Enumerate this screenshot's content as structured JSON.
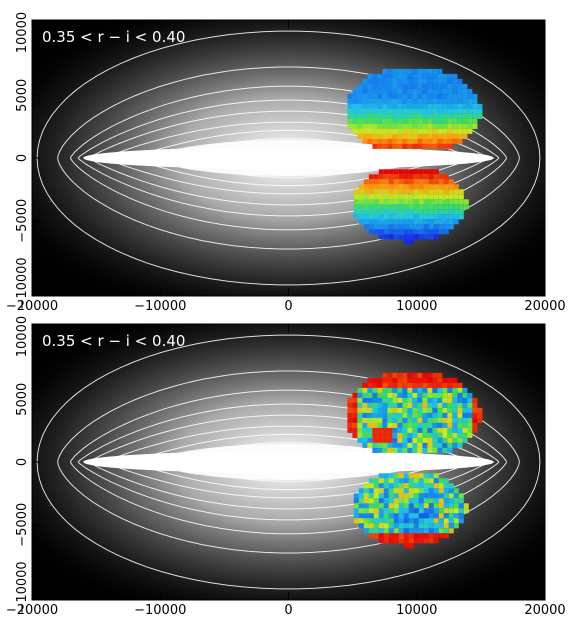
{
  "chart_data": [
    {
      "type": "heatmap",
      "panel_label": "0.35 < r − i < 0.40",
      "xlim": [
        -20000,
        20000
      ],
      "ylim": [
        -11000,
        11000
      ],
      "x_ticks": [
        -20000,
        -10000,
        0,
        10000,
        20000
      ],
      "y_ticks": [
        -10000,
        -5000,
        0,
        5000,
        10000
      ],
      "x_tick_labels": [
        "−20000",
        "−10000",
        "0",
        "10000",
        "20000"
      ],
      "y_tick_labels": [
        "−10000",
        "−5000",
        "0",
        "5000",
        "10000"
      ],
      "colormap": "rainbow",
      "background": "grayscale density with white contours"
    },
    {
      "type": "heatmap",
      "panel_label": "0.35 < r − i < 0.40",
      "xlim": [
        -20000,
        20000
      ],
      "ylim": [
        -11000,
        11000
      ],
      "x_ticks": [
        -20000,
        -10000,
        0,
        10000,
        20000
      ],
      "y_ticks": [
        -10000,
        -5000,
        0,
        5000,
        10000
      ],
      "x_tick_labels": [
        "−20000",
        "−10000",
        "0",
        "10000",
        "20000"
      ],
      "y_tick_labels": [
        "−10000",
        "−5000",
        "0",
        "5000",
        "10000"
      ],
      "colormap": "rainbow",
      "background": "grayscale density with white contours"
    }
  ]
}
